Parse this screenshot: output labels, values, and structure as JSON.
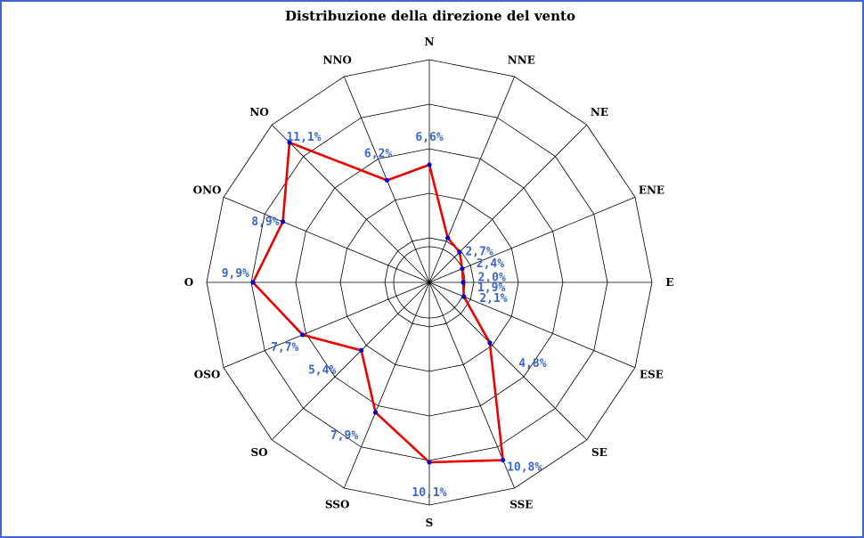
{
  "chart_data": {
    "type": "radar",
    "title": "Distribuzione della direzione del vento",
    "categories": [
      "N",
      "NNE",
      "NE",
      "ENE",
      "E",
      "ESE",
      "SE",
      "SSE",
      "S",
      "SSO",
      "SO",
      "OSO",
      "O",
      "ONO",
      "NO",
      "NNO"
    ],
    "values": [
      6.6,
      2.7,
      2.4,
      2.0,
      1.9,
      2.1,
      4.8,
      10.8,
      10.1,
      7.9,
      5.4,
      7.7,
      9.9,
      8.9,
      11.1,
      6.2
    ],
    "value_labels": [
      "6,6%",
      "2,7%",
      "2,4%",
      "2,0%",
      "1,9%",
      "2,1%",
      "4,8%",
      "10,8%",
      "10,1%",
      "7,9%",
      "5,4%",
      "7,7%",
      "9,9%",
      "8,9%",
      "11,1%",
      "6,2%"
    ],
    "rlim": [
      0,
      12.5
    ],
    "rings": 5,
    "grid": true,
    "colors": {
      "line": "#ee0000",
      "point": "#0000cc",
      "value_label": "#3a66d8",
      "grid": "#000000",
      "frame": "#3a66d8"
    }
  }
}
